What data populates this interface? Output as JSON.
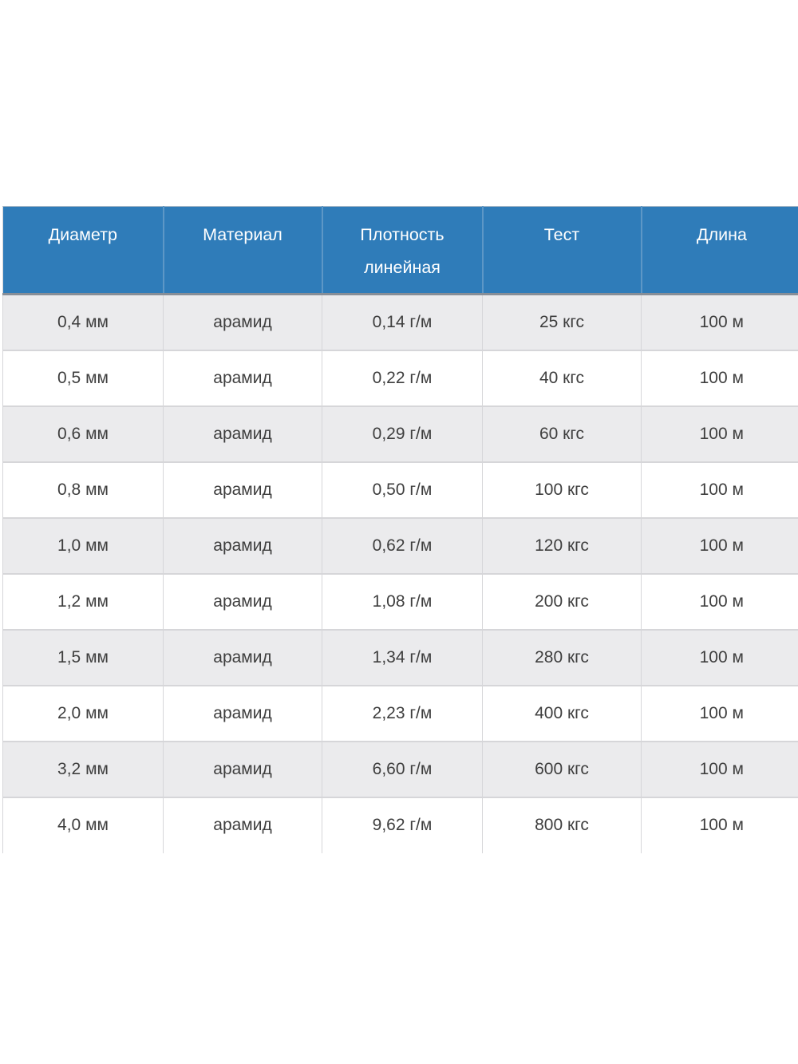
{
  "page": {
    "background": "#ffffff"
  },
  "table": {
    "columns": [
      {
        "label": "Диаметр"
      },
      {
        "label": "Материал"
      },
      {
        "label": "Плотность линейная"
      },
      {
        "label": "Тест"
      },
      {
        "label": "Длина"
      }
    ],
    "rows": [
      [
        "0,4 мм",
        "арамид",
        "0,14 г/м",
        "25 кгс",
        "100 м"
      ],
      [
        "0,5 мм",
        "арамид",
        "0,22 г/м",
        "40 кгс",
        "100 м"
      ],
      [
        "0,6 мм",
        "арамид",
        "0,29 г/м",
        "60 кгс",
        "100 м"
      ],
      [
        "0,8 мм",
        "арамид",
        "0,50 г/м",
        "100 кгс",
        "100 м"
      ],
      [
        "1,0 мм",
        "арамид",
        "0,62 г/м",
        "120 кгс",
        "100 м"
      ],
      [
        "1,2 мм",
        "арамид",
        "1,08 г/м",
        "200 кгс",
        "100 м"
      ],
      [
        "1,5 мм",
        "арамид",
        "1,34 г/м",
        "280 кгс",
        "100 м"
      ],
      [
        "2,0 мм",
        "арамид",
        "2,23 г/м",
        "400 кгс",
        "100 м"
      ],
      [
        "3,2 мм",
        "арамид",
        "6,60 г/м",
        "600 кгс",
        "100 м"
      ],
      [
        "4,0 мм",
        "арамид",
        "9,62 г/м",
        "800 кгс",
        "100 м"
      ]
    ],
    "colors": {
      "header_bg": "#2f7cb9",
      "header_text": "#ffffff",
      "header_divider": "#5d97c6",
      "header_bottom_border": "#878e97",
      "outer_top_border": "#b2bec8",
      "divider": "#d6d6d9",
      "row_bg": "#ffffff",
      "row_alt_bg": "#ebebed",
      "body_text": "#3e3e3e"
    }
  }
}
